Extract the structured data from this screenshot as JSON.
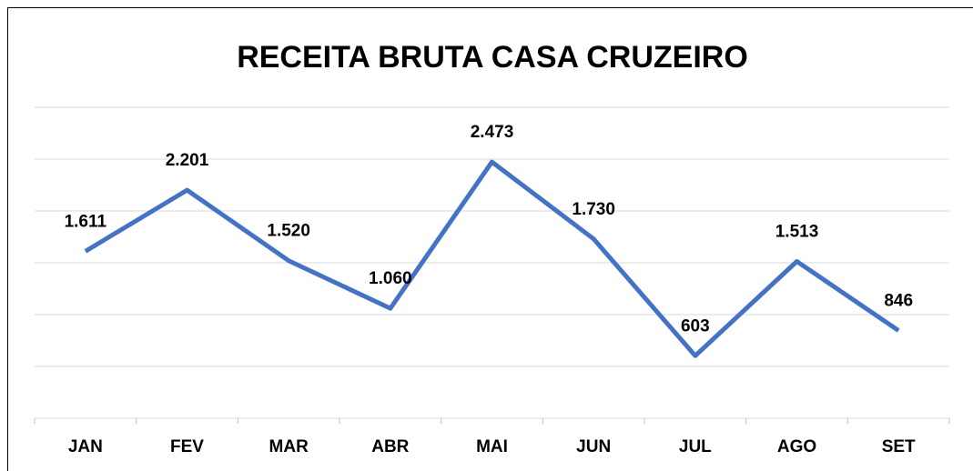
{
  "chart_data": {
    "type": "line",
    "title": "RECEITA BRUTA CASA CRUZEIRO",
    "categories": [
      "JAN",
      "FEV",
      "MAR",
      "ABR",
      "MAI",
      "JUN",
      "JUL",
      "AGO",
      "SET"
    ],
    "series": [
      {
        "name": "Receita Bruta",
        "color": "#4472c4",
        "values": [
          1611,
          2201,
          1520,
          1060,
          2473,
          1730,
          603,
          1513,
          846
        ],
        "value_labels": [
          "1.611",
          "2.201",
          "1.520",
          "1.060",
          "2.473",
          "1.730",
          "603",
          "1.513",
          "846"
        ]
      }
    ],
    "ylim": [
      0,
      3000
    ],
    "yticks": [
      0,
      500,
      1000,
      1500,
      2000,
      2500,
      3000
    ],
    "grid": true
  }
}
